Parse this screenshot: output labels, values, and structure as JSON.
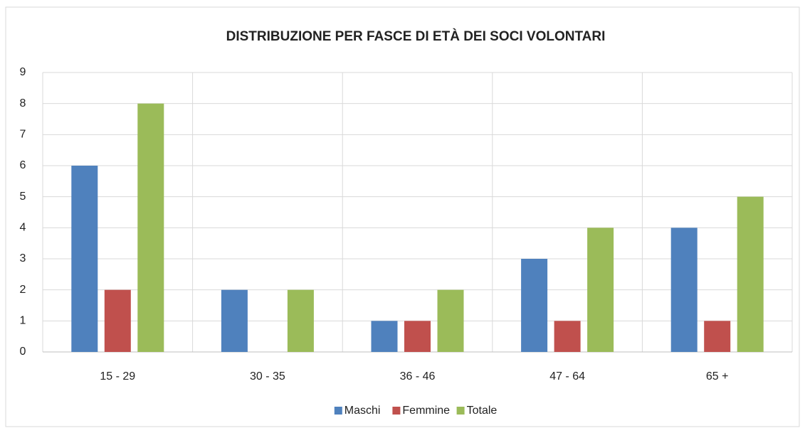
{
  "chart_data": {
    "type": "bar",
    "title": "DISTRIBUZIONE PER FASCE DI ETÀ DEI SOCI VOLONTARI",
    "categories": [
      "15 - 29",
      "30 - 35",
      "36 - 46",
      "47 - 64",
      "65 +"
    ],
    "series": [
      {
        "name": "Maschi",
        "color": "#4f81bd",
        "values": [
          6,
          2,
          1,
          3,
          4
        ]
      },
      {
        "name": "Femmine",
        "color": "#c0504d",
        "values": [
          2,
          0,
          1,
          1,
          1
        ]
      },
      {
        "name": "Totale",
        "color": "#9bbb59",
        "values": [
          8,
          2,
          2,
          4,
          5
        ]
      }
    ],
    "ylim": [
      0,
      9
    ],
    "yticks": [
      0,
      1,
      2,
      3,
      4,
      5,
      6,
      7,
      8,
      9
    ],
    "grid": true,
    "legend": "bottom"
  }
}
